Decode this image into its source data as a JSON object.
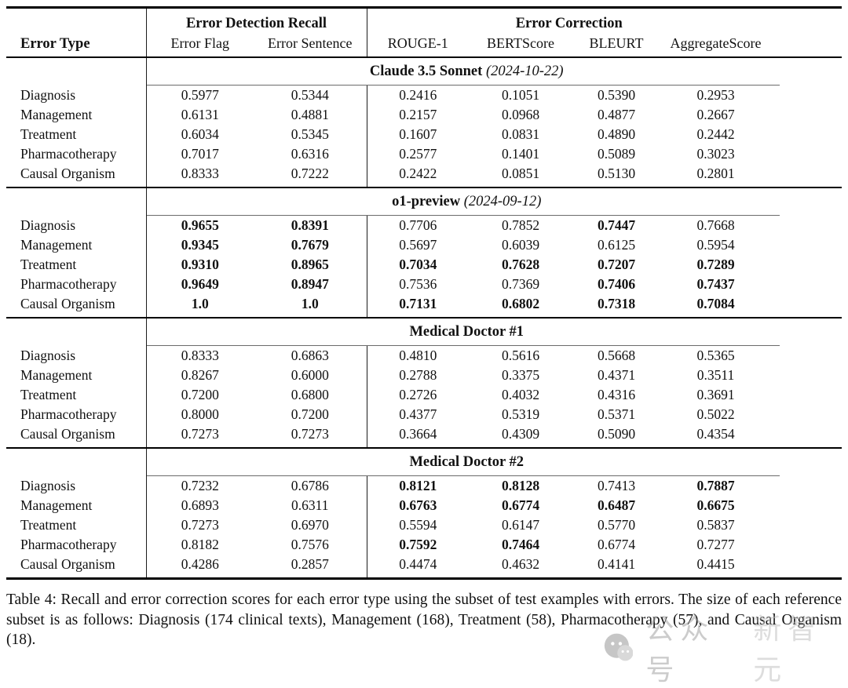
{
  "table": {
    "group_headers": [
      {
        "label": "Error Detection Recall",
        "span": 2
      },
      {
        "label": "Error Correction",
        "span": 4
      }
    ],
    "col_headers": [
      "Error Type",
      "Error Flag",
      "Error Sentence",
      "ROUGE-1",
      "BERTScore",
      "BLEURT",
      "AggregateScore"
    ],
    "sections": [
      {
        "title": "Claude 3.5 Sonnet",
        "date": "(2024-10-22)",
        "rows": [
          {
            "label": "Diagnosis",
            "values": [
              "0.5977",
              "0.5344",
              "0.2416",
              "0.1051",
              "0.5390",
              "0.2953"
            ],
            "bold": [
              false,
              false,
              false,
              false,
              false,
              false
            ]
          },
          {
            "label": "Management",
            "values": [
              "0.6131",
              "0.4881",
              "0.2157",
              "0.0968",
              "0.4877",
              "0.2667"
            ],
            "bold": [
              false,
              false,
              false,
              false,
              false,
              false
            ]
          },
          {
            "label": "Treatment",
            "values": [
              "0.6034",
              "0.5345",
              "0.1607",
              "0.0831",
              "0.4890",
              "0.2442"
            ],
            "bold": [
              false,
              false,
              false,
              false,
              false,
              false
            ]
          },
          {
            "label": "Pharmacotherapy",
            "values": [
              "0.7017",
              "0.6316",
              "0.2577",
              "0.1401",
              "0.5089",
              "0.3023"
            ],
            "bold": [
              false,
              false,
              false,
              false,
              false,
              false
            ]
          },
          {
            "label": "Causal Organism",
            "values": [
              "0.8333",
              "0.7222",
              "0.2422",
              "0.0851",
              "0.5130",
              "0.2801"
            ],
            "bold": [
              false,
              false,
              false,
              false,
              false,
              false
            ]
          }
        ]
      },
      {
        "title": "o1-preview",
        "date": "(2024-09-12)",
        "rows": [
          {
            "label": "Diagnosis",
            "values": [
              "0.9655",
              "0.8391",
              "0.7706",
              "0.7852",
              "0.7447",
              "0.7668"
            ],
            "bold": [
              true,
              true,
              false,
              false,
              true,
              false
            ]
          },
          {
            "label": "Management",
            "values": [
              "0.9345",
              "0.7679",
              "0.5697",
              "0.6039",
              "0.6125",
              "0.5954"
            ],
            "bold": [
              true,
              true,
              false,
              false,
              false,
              false
            ]
          },
          {
            "label": "Treatment",
            "values": [
              "0.9310",
              "0.8965",
              "0.7034",
              "0.7628",
              "0.7207",
              "0.7289"
            ],
            "bold": [
              true,
              true,
              true,
              true,
              true,
              true
            ]
          },
          {
            "label": "Pharmacotherapy",
            "values": [
              "0.9649",
              "0.8947",
              "0.7536",
              "0.7369",
              "0.7406",
              "0.7437"
            ],
            "bold": [
              true,
              true,
              false,
              false,
              true,
              true
            ]
          },
          {
            "label": "Causal Organism",
            "values": [
              "1.0",
              "1.0",
              "0.7131",
              "0.6802",
              "0.7318",
              "0.7084"
            ],
            "bold": [
              true,
              true,
              true,
              true,
              true,
              true
            ]
          }
        ]
      },
      {
        "title": "Medical Doctor #1",
        "date": "",
        "rows": [
          {
            "label": "Diagnosis",
            "values": [
              "0.8333",
              "0.6863",
              "0.4810",
              "0.5616",
              "0.5668",
              "0.5365"
            ],
            "bold": [
              false,
              false,
              false,
              false,
              false,
              false
            ]
          },
          {
            "label": "Management",
            "values": [
              "0.8267",
              "0.6000",
              "0.2788",
              "0.3375",
              "0.4371",
              "0.3511"
            ],
            "bold": [
              false,
              false,
              false,
              false,
              false,
              false
            ]
          },
          {
            "label": "Treatment",
            "values": [
              "0.7200",
              "0.6800",
              "0.2726",
              "0.4032",
              "0.4316",
              "0.3691"
            ],
            "bold": [
              false,
              false,
              false,
              false,
              false,
              false
            ]
          },
          {
            "label": "Pharmacotherapy",
            "values": [
              "0.8000",
              "0.7200",
              "0.4377",
              "0.5319",
              "0.5371",
              "0.5022"
            ],
            "bold": [
              false,
              false,
              false,
              false,
              false,
              false
            ]
          },
          {
            "label": "Causal Organism",
            "values": [
              "0.7273",
              "0.7273",
              "0.3664",
              "0.4309",
              "0.5090",
              "0.4354"
            ],
            "bold": [
              false,
              false,
              false,
              false,
              false,
              false
            ]
          }
        ]
      },
      {
        "title": "Medical Doctor #2",
        "date": "",
        "rows": [
          {
            "label": "Diagnosis",
            "values": [
              "0.7232",
              "0.6786",
              "0.8121",
              "0.8128",
              "0.7413",
              "0.7887"
            ],
            "bold": [
              false,
              false,
              true,
              true,
              false,
              true
            ]
          },
          {
            "label": "Management",
            "values": [
              "0.6893",
              "0.6311",
              "0.6763",
              "0.6774",
              "0.6487",
              "0.6675"
            ],
            "bold": [
              false,
              false,
              true,
              true,
              true,
              true
            ]
          },
          {
            "label": "Treatment",
            "values": [
              "0.7273",
              "0.6970",
              "0.5594",
              "0.6147",
              "0.5770",
              "0.5837"
            ],
            "bold": [
              false,
              false,
              false,
              false,
              false,
              false
            ]
          },
          {
            "label": "Pharmacotherapy",
            "values": [
              "0.8182",
              "0.7576",
              "0.7592",
              "0.7464",
              "0.6774",
              "0.7277"
            ],
            "bold": [
              false,
              false,
              true,
              true,
              false,
              false
            ]
          },
          {
            "label": "Causal Organism",
            "values": [
              "0.4286",
              "0.2857",
              "0.4474",
              "0.4632",
              "0.4141",
              "0.4415"
            ],
            "bold": [
              false,
              false,
              false,
              false,
              false,
              false
            ]
          }
        ]
      }
    ]
  },
  "caption": {
    "text": "Table 4: Recall and error correction scores for each error type using the subset of test examples with errors. The size of each reference subset is as follows: Diagnosis (174 clinical texts), Management (168), Treatment (58), Pharmacotherapy (57), and Causal Organism (18)."
  },
  "watermark": {
    "icon": "wechat-icon",
    "text_1": "公众号",
    "text_2": "新智元"
  },
  "colors": {
    "rule": "#000000",
    "partial_rule": "#6b6b6b",
    "text": "#111111",
    "watermark": "#9a9a9a",
    "background": "#ffffff"
  }
}
